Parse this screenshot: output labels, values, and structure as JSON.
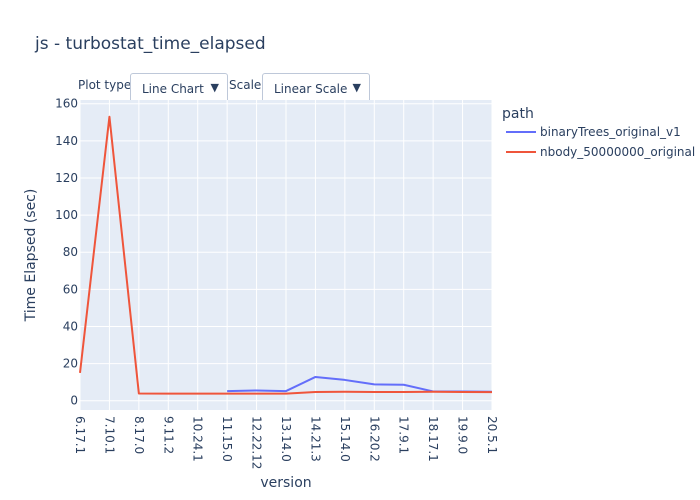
{
  "title": "js - turbostat_time_elapsed",
  "controls": {
    "plot_type_label": "Plot type:",
    "plot_type_value": "Line Chart",
    "scale_label": "Scale:",
    "scale_value": "Linear Scale",
    "arrow_icon": "dropdown-triangle-icon"
  },
  "colors": {
    "plot_background": "#e5ecf6",
    "grid": "#ffffff",
    "text": "#2a3f5f"
  },
  "chart_data": {
    "type": "line",
    "title": "js - turbostat_time_elapsed",
    "xlabel": "version",
    "ylabel": "Time Elapsed (sec)",
    "categories": [
      "6.17.1",
      "7.10.1",
      "8.17.0",
      "9.11.2",
      "10.24.1",
      "11.15.0",
      "12.22.12",
      "13.14.0",
      "14.21.3",
      "15.14.0",
      "16.20.2",
      "17.9.1",
      "18.17.1",
      "19.9.0",
      "20.5.1"
    ],
    "ylim": [
      -5,
      162
    ],
    "yticks": [
      0,
      20,
      40,
      60,
      80,
      100,
      120,
      140,
      160
    ],
    "grid": true,
    "legend_title": "path",
    "legend_position": "top-right",
    "series": [
      {
        "name": "binaryTrees_original_v1",
        "color": "#636efa",
        "values": [
          null,
          null,
          null,
          null,
          null,
          5.2,
          5.5,
          5.2,
          12.8,
          11.2,
          8.8,
          8.6,
          5.0,
          5.0,
          4.8
        ]
      },
      {
        "name": "nbody_50000000_original",
        "color": "#ef553b",
        "values": [
          15.0,
          153.0,
          3.9,
          3.8,
          3.8,
          3.8,
          3.8,
          3.8,
          4.7,
          4.8,
          4.7,
          4.7,
          4.8,
          4.7,
          4.6
        ]
      }
    ]
  }
}
